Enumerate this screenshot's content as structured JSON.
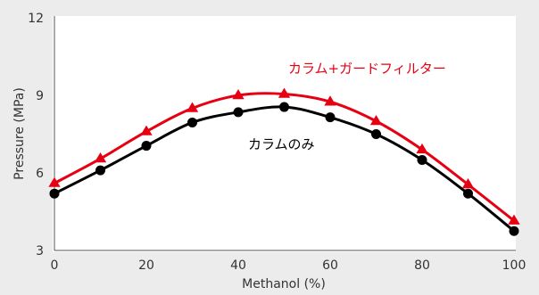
{
  "chart_data": {
    "type": "line",
    "title": "",
    "xlabel": "Methanol (%)",
    "ylabel": "Pressure (MPa)",
    "xlim": [
      0,
      100
    ],
    "ylim": [
      3,
      12
    ],
    "xticks": [
      0,
      20,
      40,
      60,
      80,
      100
    ],
    "yticks": [
      3,
      6,
      9,
      12
    ],
    "grid": false,
    "legend": "inline labels",
    "series": [
      {
        "name": "カラム+ガードフィルター",
        "color": "#e60012",
        "marker": "triangle",
        "x": [
          0,
          10,
          20,
          30,
          40,
          50,
          60,
          70,
          80,
          90,
          100
        ],
        "y": [
          5.6,
          6.55,
          7.6,
          8.5,
          9.0,
          9.05,
          8.75,
          8.0,
          6.9,
          5.55,
          4.15
        ]
      },
      {
        "name": "カラムのみ",
        "color": "#000000",
        "marker": "circle",
        "x": [
          0,
          10,
          20,
          30,
          40,
          50,
          60,
          70,
          80,
          90,
          100
        ],
        "y": [
          5.2,
          6.1,
          7.05,
          7.95,
          8.35,
          8.55,
          8.15,
          7.5,
          6.5,
          5.2,
          3.75
        ]
      }
    ]
  }
}
